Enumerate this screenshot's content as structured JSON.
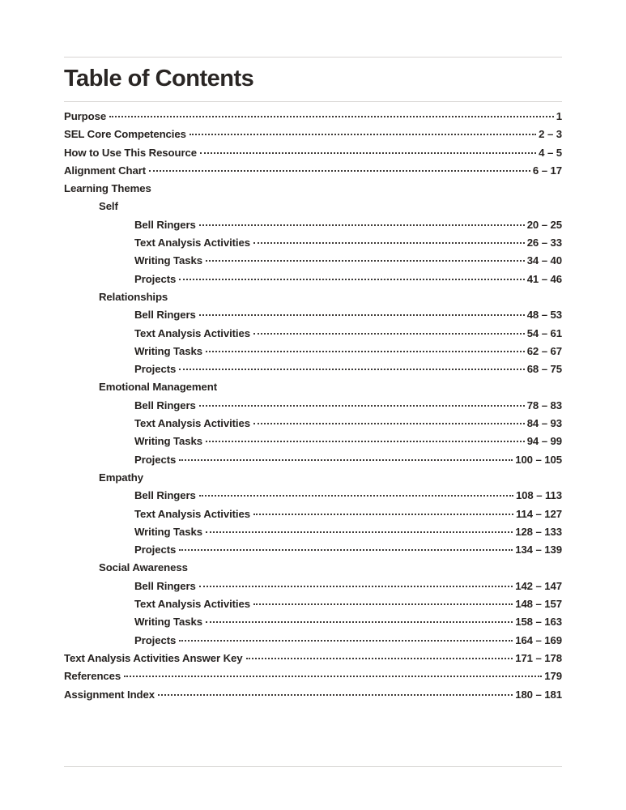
{
  "page": {
    "title": "Table of Contents"
  },
  "toc": {
    "entries": [
      {
        "label": "Purpose",
        "pages": "1",
        "level": 0
      },
      {
        "label": "SEL Core Competencies",
        "pages": "2 – 3",
        "level": 0
      },
      {
        "label": "How to Use This Resource",
        "pages": "4 – 5",
        "level": 0
      },
      {
        "label": "Alignment Chart",
        "pages": "6 – 17",
        "level": 0
      },
      {
        "label": "Learning Themes",
        "pages": "",
        "level": 0
      },
      {
        "label": "Self",
        "pages": "",
        "level": 1
      },
      {
        "label": "Bell Ringers",
        "pages": "20 – 25",
        "level": 2
      },
      {
        "label": "Text Analysis Activities",
        "pages": "26 – 33",
        "level": 2
      },
      {
        "label": "Writing Tasks",
        "pages": "34 – 40",
        "level": 2
      },
      {
        "label": "Projects",
        "pages": "41 – 46",
        "level": 2
      },
      {
        "label": "Relationships",
        "pages": "",
        "level": 1
      },
      {
        "label": "Bell Ringers",
        "pages": "48 – 53",
        "level": 2
      },
      {
        "label": "Text Analysis Activities",
        "pages": "54 – 61",
        "level": 2
      },
      {
        "label": "Writing Tasks",
        "pages": "62 – 67",
        "level": 2
      },
      {
        "label": "Projects",
        "pages": "68 – 75",
        "level": 2
      },
      {
        "label": "Emotional Management",
        "pages": "",
        "level": 1
      },
      {
        "label": "Bell Ringers",
        "pages": "78 – 83",
        "level": 2
      },
      {
        "label": "Text Analysis Activities",
        "pages": "84 – 93",
        "level": 2
      },
      {
        "label": "Writing Tasks",
        "pages": "94 – 99",
        "level": 2
      },
      {
        "label": "Projects",
        "pages": "100 – 105",
        "level": 2
      },
      {
        "label": "Empathy",
        "pages": "",
        "level": 1
      },
      {
        "label": "Bell Ringers",
        "pages": "108 – 113",
        "level": 2
      },
      {
        "label": "Text Analysis Activities",
        "pages": "114 – 127",
        "level": 2
      },
      {
        "label": "Writing Tasks",
        "pages": "128 – 133",
        "level": 2
      },
      {
        "label": "Projects",
        "pages": "134 – 139",
        "level": 2
      },
      {
        "label": "Social Awareness",
        "pages": "",
        "level": 1
      },
      {
        "label": "Bell Ringers",
        "pages": "142 – 147",
        "level": 2
      },
      {
        "label": "Text Analysis Activities",
        "pages": "148 – 157",
        "level": 2
      },
      {
        "label": "Writing Tasks",
        "pages": "158 – 163",
        "level": 2
      },
      {
        "label": "Projects",
        "pages": "164 – 169",
        "level": 2
      },
      {
        "label": "Text Analysis Activities Answer Key",
        "pages": "171 – 178",
        "level": 0
      },
      {
        "label": "References",
        "pages": "179",
        "level": 0
      },
      {
        "label": "Assignment Index",
        "pages": "180 – 181",
        "level": 0
      }
    ]
  }
}
